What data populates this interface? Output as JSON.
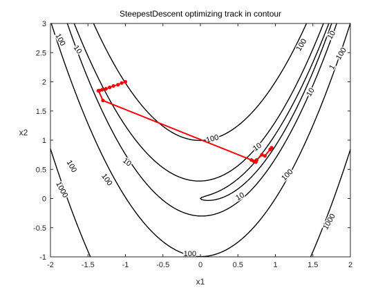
{
  "chart_data": {
    "type": "contour",
    "title": "SteepestDescent optimizing track in contour",
    "xlabel": "x1",
    "ylabel": "x2",
    "xlim": [
      -2,
      2
    ],
    "ylim": [
      -1,
      3
    ],
    "xticks": [
      -2,
      -1.5,
      -1,
      -0.5,
      0,
      0.5,
      1,
      1.5,
      2
    ],
    "yticks": [
      -1,
      -0.5,
      0,
      0.5,
      1,
      1.5,
      2,
      2.5,
      3
    ],
    "contour_levels": [
      1,
      10,
      100,
      1000
    ],
    "contour_labels": [
      {
        "text": "1000",
        "x": -1.85,
        "y": 0.15,
        "angle": 62
      },
      {
        "text": "100",
        "x": -1.87,
        "y": 2.72,
        "angle": 62
      },
      {
        "text": "10",
        "x": -1.64,
        "y": 2.55,
        "angle": 55
      },
      {
        "text": "100",
        "x": -1.72,
        "y": 0.55,
        "angle": 60
      },
      {
        "text": "100",
        "x": -1.25,
        "y": 0.32,
        "angle": 55
      },
      {
        "text": "10",
        "x": -0.98,
        "y": 0.62,
        "angle": 38
      },
      {
        "text": "100",
        "x": 0.16,
        "y": 1.02,
        "angle": -15
      },
      {
        "text": "10",
        "x": 0.76,
        "y": 0.88,
        "angle": -35
      },
      {
        "text": "10",
        "x": 0.53,
        "y": 0.03,
        "angle": -30
      },
      {
        "text": "100",
        "x": 1.16,
        "y": 0.4,
        "angle": -45
      },
      {
        "text": "1000",
        "x": 1.72,
        "y": -0.4,
        "angle": -60
      },
      {
        "text": "100",
        "x": -0.14,
        "y": -0.95,
        "angle": 0
      },
      {
        "text": "100",
        "x": 1.35,
        "y": 2.63,
        "angle": -58
      },
      {
        "text": "10",
        "x": 1.75,
        "y": 2.8,
        "angle": -58
      },
      {
        "text": "100",
        "x": 1.88,
        "y": 2.48,
        "angle": -58
      },
      {
        "text": "10",
        "x": 1.47,
        "y": 1.82,
        "angle": -60
      },
      {
        "text": "1",
        "x": 1.76,
        "y": 2.25,
        "angle": -62
      }
    ],
    "series": [
      {
        "color": "#ff0000",
        "x": [
          -1.0,
          -1.05,
          -1.1,
          -1.16,
          -1.21,
          -1.26,
          -1.31,
          -1.345,
          -1.36,
          -1.36,
          -1.3,
          0.68,
          0.71,
          0.74,
          0.75,
          0.82,
          0.86,
          0.93,
          0.95
        ],
        "y": [
          2.0,
          1.98,
          1.95,
          1.93,
          1.905,
          1.88,
          1.865,
          1.85,
          1.845,
          1.85,
          1.68,
          0.66,
          0.64,
          0.625,
          0.66,
          0.75,
          0.73,
          0.84,
          0.87
        ]
      }
    ]
  }
}
